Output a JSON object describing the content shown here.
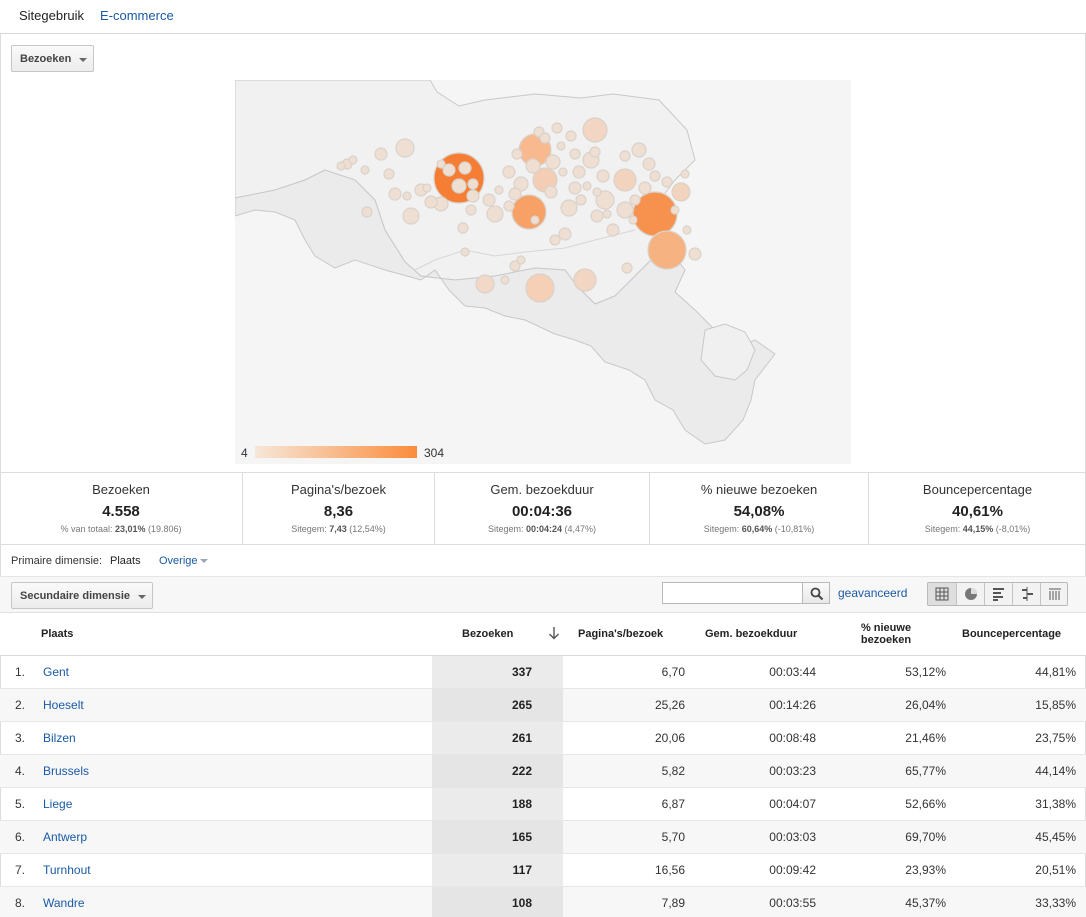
{
  "tabs": [
    {
      "label": "Sitegebruik"
    },
    {
      "label": "E-commerce"
    }
  ],
  "metric_selector": {
    "label": "Bezoeken"
  },
  "map": {
    "legend_min": "4",
    "legend_max": "304",
    "colors": {
      "low": "#f6e7d9",
      "high": "#fb8c3c",
      "land": "#f5f5f5",
      "border": "#c8c8c8"
    }
  },
  "scorecards": [
    {
      "title": "Bezoeken",
      "value": "4.558",
      "sub_label": "% van totaal:",
      "sub_value": "23,01%",
      "sub_extra": "(19.806)"
    },
    {
      "title": "Pagina's/bezoek",
      "value": "8,36",
      "sub_label": "Sitegem:",
      "sub_value": "7,43",
      "sub_extra": "(12,54%)"
    },
    {
      "title": "Gem. bezoekduur",
      "value": "00:04:36",
      "sub_label": "Sitegem:",
      "sub_value": "00:04:24",
      "sub_extra": "(4,47%)"
    },
    {
      "title": "% nieuwe bezoeken",
      "value": "54,08%",
      "sub_label": "Sitegem:",
      "sub_value": "60,64%",
      "sub_extra": "(-10,81%)"
    },
    {
      "title": "Bouncepercentage",
      "value": "40,61%",
      "sub_label": "Sitegem:",
      "sub_value": "44,15%",
      "sub_extra": "(-8,01%)"
    }
  ],
  "dimension": {
    "label": "Primaire dimensie:",
    "active": "Plaats",
    "other": "Overige"
  },
  "toolbar": {
    "secondary_label": "Secundaire dimensie",
    "search_value": "",
    "advanced": "geavanceerd"
  },
  "view_icons": [
    "table-view-icon",
    "pie-view-icon",
    "bar-view-icon",
    "comparison-view-icon",
    "pivot-view-icon"
  ],
  "table": {
    "headers": {
      "city": "Plaats",
      "visits": "Bezoeken",
      "pages": "Pagina's/bezoek",
      "duration": "Gem. bezoekduur",
      "new_line1": "% nieuwe",
      "new_line2": "bezoeken",
      "bounce": "Bouncepercentage"
    },
    "rows": [
      {
        "idx": "1.",
        "city": "Gent",
        "visits": "337",
        "pages": "6,70",
        "duration": "00:03:44",
        "new": "53,12%",
        "bounce": "44,81%"
      },
      {
        "idx": "2.",
        "city": "Hoeselt",
        "visits": "265",
        "pages": "25,26",
        "duration": "00:14:26",
        "new": "26,04%",
        "bounce": "15,85%"
      },
      {
        "idx": "3.",
        "city": "Bilzen",
        "visits": "261",
        "pages": "20,06",
        "duration": "00:08:48",
        "new": "21,46%",
        "bounce": "23,75%"
      },
      {
        "idx": "4.",
        "city": "Brussels",
        "visits": "222",
        "pages": "5,82",
        "duration": "00:03:23",
        "new": "65,77%",
        "bounce": "44,14%"
      },
      {
        "idx": "5.",
        "city": "Liege",
        "visits": "188",
        "pages": "6,87",
        "duration": "00:04:07",
        "new": "52,66%",
        "bounce": "31,38%"
      },
      {
        "idx": "6.",
        "city": "Antwerp",
        "visits": "165",
        "pages": "5,70",
        "duration": "00:03:03",
        "new": "69,70%",
        "bounce": "45,45%"
      },
      {
        "idx": "7.",
        "city": "Turnhout",
        "visits": "117",
        "pages": "16,56",
        "duration": "00:09:42",
        "new": "23,93%",
        "bounce": "20,51%"
      },
      {
        "idx": "8.",
        "city": "Wandre",
        "visits": "108",
        "pages": "7,89",
        "duration": "00:03:55",
        "new": "45,37%",
        "bounce": "33,33%"
      }
    ]
  }
}
